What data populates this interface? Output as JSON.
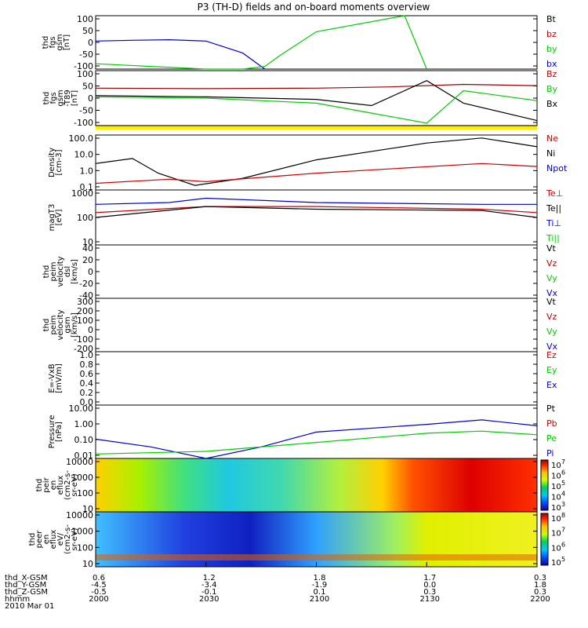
{
  "title": "P3 (TH-D) fields and on-board moments overview",
  "colors": {
    "black": "#000000",
    "red": "#cc0000",
    "green": "#00cc00",
    "blue": "#0000cc",
    "darkred": "#990000",
    "yellow": "#ffee00"
  },
  "panels": [
    {
      "ylabel": [
        "thd",
        "fgs",
        "gsm",
        "[nT]"
      ],
      "ticks": [
        "100",
        "50",
        "0",
        "-50",
        "-100"
      ],
      "legend": [
        {
          "text": "Bt",
          "color": "#000000"
        },
        {
          "text": "bz",
          "color": "#cc0000"
        },
        {
          "text": "by",
          "color": "#00cc00"
        },
        {
          "text": "bx",
          "color": "#0000cc"
        }
      ]
    },
    {
      "ylabel": [
        "thd",
        "fgs",
        "gsm",
        "-T89",
        "[nT]"
      ],
      "ticks": [
        "100",
        "50",
        "0",
        "-50",
        "-100"
      ],
      "legend": [
        {
          "text": "Bz",
          "color": "#cc0000"
        },
        {
          "text": "By",
          "color": "#00cc00"
        },
        {
          "text": "Bx",
          "color": "#000000"
        }
      ]
    },
    {
      "ylabel": [
        "Density",
        "[cm-3]"
      ],
      "ticks": [
        "100.0",
        "10.0",
        "1.0",
        "0.1"
      ],
      "legend": [
        {
          "text": "Ne",
          "color": "#cc0000"
        },
        {
          "text": "Ni",
          "color": "#000000"
        },
        {
          "text": "Npot",
          "color": "#0000cc"
        }
      ]
    },
    {
      "ylabel": [
        "magT3",
        "[eV]"
      ],
      "ticks": [
        "1000",
        "100",
        "10"
      ],
      "legend": [
        {
          "text": "Te⊥",
          "color": "#cc0000"
        },
        {
          "text": "Te||",
          "color": "#000000"
        },
        {
          "text": "Ti⊥",
          "color": "#0000cc"
        },
        {
          "text": "Ti||",
          "color": "#00cc00"
        }
      ]
    },
    {
      "ylabel": [
        "thd",
        "peim",
        "velocity",
        "dsl",
        "[km/s]"
      ],
      "ticks": [
        "40",
        "20",
        "0",
        "-20",
        "-40"
      ],
      "legend": [
        {
          "text": "Vt",
          "color": "#000000"
        },
        {
          "text": "Vz",
          "color": "#cc0000"
        },
        {
          "text": "Vy",
          "color": "#00cc00"
        },
        {
          "text": "Vx",
          "color": "#0000cc"
        }
      ]
    },
    {
      "ylabel": [
        "thd",
        "peim",
        "velocity",
        "gsm",
        "[km/s]"
      ],
      "ticks": [
        "300",
        "200",
        "100",
        "0",
        "-100",
        "-200"
      ],
      "legend": [
        {
          "text": "Vt",
          "color": "#000000"
        },
        {
          "text": "Vz",
          "color": "#cc0000"
        },
        {
          "text": "Vy",
          "color": "#00cc00"
        },
        {
          "text": "Vx",
          "color": "#0000cc"
        }
      ]
    },
    {
      "ylabel": [
        "E=-VxB",
        "[mV/m]"
      ],
      "ticks": [
        "1.0",
        "0.8",
        "0.6",
        "0.4",
        "0.2",
        "0.0"
      ],
      "legend": [
        {
          "text": "Ez",
          "color": "#cc0000"
        },
        {
          "text": "Ey",
          "color": "#00cc00"
        },
        {
          "text": "Ex",
          "color": "#0000cc"
        }
      ]
    },
    {
      "ylabel": [
        "Pressure",
        "[nPa]"
      ],
      "ticks": [
        "10.00",
        "1.00",
        "0.10",
        "0.01"
      ],
      "legend": [
        {
          "text": "Pt",
          "color": "#000000"
        },
        {
          "text": "Pb",
          "color": "#cc0000"
        },
        {
          "text": "Pe",
          "color": "#00cc00"
        },
        {
          "text": "Pi",
          "color": "#0000cc"
        }
      ]
    },
    {
      "ylabel": [
        "thd",
        "peir",
        "en",
        "eflux",
        "(cm2-s-",
        "sr-eV)"
      ],
      "ticks": [
        "10000",
        "1000",
        "100",
        "10"
      ],
      "colorbar": [
        "10",
        "10",
        "10",
        "10",
        "10"
      ],
      "colorbar_exp": [
        "7",
        "6",
        "5",
        "4",
        "3"
      ]
    },
    {
      "ylabel": [
        "thd",
        "peer",
        "en",
        "eflux",
        "eV/",
        "(cm2-s-",
        "sr-eV)"
      ],
      "ticks": [
        "10000",
        "1000",
        "100",
        "10"
      ],
      "colorbar": [
        "10",
        "10",
        "10",
        "10"
      ],
      "colorbar_exp": [
        "8",
        "7",
        "6",
        "5"
      ]
    }
  ],
  "xaxis": {
    "row_labels": [
      "thd_X-GSM",
      "thd_Y-GSM",
      "thd_Z-GSM",
      "hhmm",
      "2010 Mar 01"
    ],
    "columns": [
      [
        "0.6",
        "-4.5",
        "-0.5",
        "2000"
      ],
      [
        "1.2",
        "-3.4",
        "-0.1",
        "2030"
      ],
      [
        "1.8",
        "-1.9",
        "0.1",
        "2100"
      ],
      [
        "1.7",
        "0.0",
        "0.3",
        "2130"
      ],
      [
        "0.3",
        "1.8",
        "0.3",
        "2200"
      ]
    ]
  },
  "chart_data": {
    "type": "line",
    "title": "P3 (TH-D) fields and on-board moments overview",
    "xlabel": "hhmm",
    "x": [
      "2000",
      "2030",
      "2100",
      "2130",
      "2200"
    ],
    "series": [
      {
        "name": "bx",
        "x": [
          "2000",
          "2010",
          "2020",
          "2030",
          "2040",
          "2046"
        ],
        "values": [
          5,
          8,
          10,
          5,
          -40,
          -100
        ]
      },
      {
        "name": "by",
        "x": [
          "2000",
          "2030",
          "2040",
          "2046",
          "2050",
          "2100",
          "2124",
          "2130"
        ],
        "values": [
          -80,
          -100,
          -105,
          -90,
          -50,
          40,
          100,
          -100
        ]
      },
      {
        "name": "Bz",
        "x": [
          "2000",
          "2030",
          "2100",
          "2120",
          "2140",
          "2200"
        ],
        "values": [
          30,
          28,
          30,
          35,
          45,
          40
        ]
      },
      {
        "name": "Bx",
        "x": [
          "2000",
          "2030",
          "2100",
          "2115",
          "2130",
          "2140",
          "2200"
        ],
        "values": [
          0,
          -5,
          -15,
          -40,
          60,
          -30,
          -100
        ]
      },
      {
        "name": "By",
        "x": [
          "2000",
          "2030",
          "2100",
          "2115",
          "2130",
          "2140",
          "2200"
        ],
        "values": [
          -5,
          -10,
          -30,
          -70,
          -110,
          20,
          -20
        ]
      },
      {
        "name": "Ni",
        "x": [
          "2000",
          "2010",
          "2017",
          "2027",
          "2040",
          "2100",
          "2130",
          "2145",
          "2200"
        ],
        "values": [
          3,
          6,
          0.8,
          0.15,
          0.4,
          5,
          50,
          100,
          30
        ]
      },
      {
        "name": "Ne",
        "x": [
          "2000",
          "2020",
          "2030",
          "2100",
          "2145",
          "2200"
        ],
        "values": [
          0.2,
          0.35,
          0.25,
          0.8,
          3,
          2
        ]
      },
      {
        "name": "Ti⊥",
        "x": [
          "2000",
          "2020",
          "2030",
          "2100",
          "2145",
          "2200"
        ],
        "values": [
          300,
          350,
          500,
          350,
          300,
          300
        ]
      },
      {
        "name": "Te⊥",
        "x": [
          "2000",
          "2030",
          "2100",
          "2145",
          "2200"
        ],
        "values": [
          150,
          250,
          250,
          200,
          150
        ]
      },
      {
        "name": "Te||",
        "x": [
          "2000",
          "2030",
          "2100",
          "2145",
          "2200"
        ],
        "values": [
          100,
          250,
          200,
          180,
          100
        ]
      },
      {
        "name": "Pi",
        "x": [
          "2000",
          "2015",
          "2030",
          "2045",
          "2100",
          "2130",
          "2145",
          "2200"
        ],
        "values": [
          0.1,
          0.03,
          0.004,
          0.03,
          0.3,
          1,
          2,
          0.8
        ]
      },
      {
        "name": "Pe",
        "x": [
          "2000",
          "2030",
          "2100",
          "2130",
          "2145",
          "2200"
        ],
        "values": [
          0.01,
          0.015,
          0.06,
          0.25,
          0.35,
          0.2
        ]
      }
    ],
    "panels": [
      {
        "ylim": [
          -100,
          100
        ]
      },
      {
        "ylim": [
          -120,
          100
        ]
      },
      {
        "ylim": [
          0.08,
          150
        ],
        "scale": "log"
      },
      {
        "ylim": [
          10,
          1000
        ],
        "scale": "log"
      },
      {
        "ylim": [
          -40,
          40
        ]
      },
      {
        "ylim": [
          -200,
          300
        ]
      },
      {
        "ylim": [
          0,
          1
        ]
      },
      {
        "ylim": [
          0.005,
          20
        ],
        "scale": "log"
      },
      {
        "type": "heatmap",
        "ylim": [
          10,
          20000
        ],
        "scale": "log"
      },
      {
        "type": "heatmap",
        "ylim": [
          7,
          20000
        ],
        "scale": "log"
      }
    ]
  }
}
